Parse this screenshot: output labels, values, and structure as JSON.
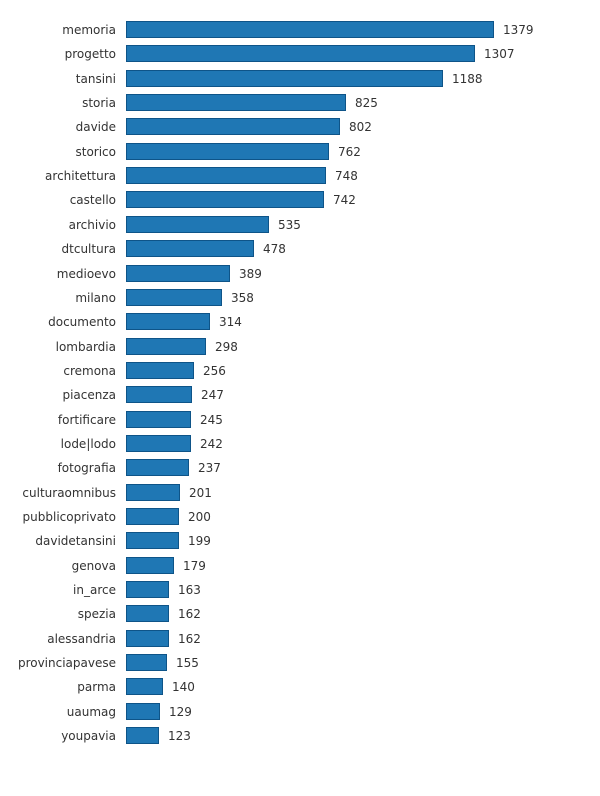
{
  "chart_data": {
    "type": "bar",
    "orientation": "horizontal",
    "title": "",
    "xlabel": "",
    "ylabel": "",
    "grid": false,
    "legend": null,
    "bar_color": "#1f77b4",
    "bar_edge_color": "#0e5488",
    "categories": [
      "memoria",
      "progetto",
      "tansini",
      "storia",
      "davide",
      "storico",
      "architettura",
      "castello",
      "archivio",
      "dtcultura",
      "medioevo",
      "milano",
      "documento",
      "lombardia",
      "cremona",
      "piacenza",
      "fortificare",
      "lode|lodo",
      "fotografia",
      "culturaomnibus",
      "pubblicoprivato",
      "davidetansini",
      "genova",
      "in_arce",
      "spezia",
      "alessandria",
      "provinciapavese",
      "parma",
      "uaumag",
      "youpavia"
    ],
    "values": [
      1379,
      1307,
      1188,
      825,
      802,
      762,
      748,
      742,
      535,
      478,
      389,
      358,
      314,
      298,
      256,
      247,
      245,
      242,
      237,
      201,
      200,
      199,
      179,
      163,
      162,
      162,
      155,
      140,
      129,
      123
    ],
    "xlim": [
      0,
      1379
    ]
  }
}
